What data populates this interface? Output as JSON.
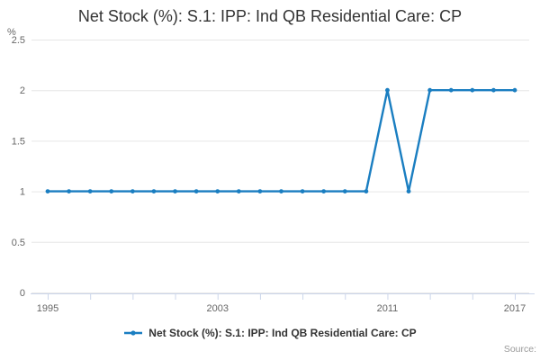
{
  "title": "Net Stock (%): S.1: IPP: Ind QB Residential Care: CP",
  "y_axis": {
    "unit_label": "%",
    "tick_labels": [
      "0",
      "0.5",
      "1",
      "1.5",
      "2",
      "2.5"
    ]
  },
  "x_axis": {
    "labeled_ticks": [
      "1995",
      "2003",
      "2011",
      "2017"
    ]
  },
  "legend": {
    "label": "Net Stock (%): S.1: IPP: Ind QB Residential Care: CP"
  },
  "credits": {
    "label": "Source:"
  },
  "colors": {
    "line": "#1a7ec1",
    "grid": "#e6e6e6",
    "axis_line": "#ccd6eb",
    "tick_text": "#666666",
    "title_text": "#333333",
    "legend_text": "#333333",
    "credits_text": "#999999",
    "background": "#ffffff"
  },
  "chart_data": {
    "type": "line",
    "title": "Net Stock (%): S.1: IPP: Ind QB Residential Care: CP",
    "xlabel": "",
    "ylabel": "%",
    "x": [
      1995,
      1996,
      1997,
      1998,
      1999,
      2000,
      2001,
      2002,
      2003,
      2004,
      2005,
      2006,
      2007,
      2008,
      2009,
      2010,
      2011,
      2012,
      2013,
      2014,
      2015,
      2016,
      2017
    ],
    "series": [
      {
        "name": "Net Stock (%): S.1: IPP: Ind QB Residential Care: CP",
        "values": [
          1,
          1,
          1,
          1,
          1,
          1,
          1,
          1,
          1,
          1,
          1,
          1,
          1,
          1,
          1,
          1,
          2,
          1,
          2,
          2,
          2,
          2,
          2
        ]
      }
    ],
    "ylim": [
      0,
      2.5
    ],
    "yticks": [
      0,
      0.5,
      1,
      1.5,
      2,
      2.5
    ],
    "xticks": [
      1995,
      1997,
      1999,
      2001,
      2003,
      2005,
      2007,
      2009,
      2011,
      2013,
      2015,
      2017
    ],
    "x_labeled_ticks": [
      1995,
      2003,
      2011,
      2017
    ],
    "grid": "horizontal",
    "legend_position": "bottom",
    "marker": "circle"
  }
}
